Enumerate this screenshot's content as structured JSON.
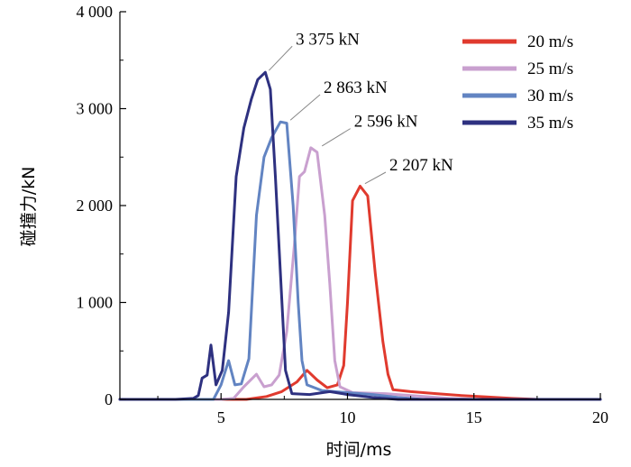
{
  "chart_data": {
    "type": "line",
    "title": "",
    "xlabel": "时间/ms",
    "ylabel": "碰撞力/kN",
    "xlim": [
      1,
      20
    ],
    "ylim": [
      0,
      4000
    ],
    "x_ticks": [
      5,
      10,
      15,
      20
    ],
    "x_tick_labels": [
      "5",
      "10",
      "15",
      "20"
    ],
    "y_ticks": [
      0,
      1000,
      2000,
      3000,
      4000
    ],
    "y_tick_labels": [
      "0",
      "1 000",
      "2 000",
      "3 000",
      "4 000"
    ],
    "grid": false,
    "legend_position": "top-right",
    "series": [
      {
        "name": "20 m/s",
        "color": "#e03a2e",
        "points": [
          [
            1,
            0
          ],
          [
            4,
            0
          ],
          [
            6,
            0
          ],
          [
            6.8,
            30
          ],
          [
            7.4,
            80
          ],
          [
            8.0,
            180
          ],
          [
            8.4,
            300
          ],
          [
            8.8,
            200
          ],
          [
            9.2,
            120
          ],
          [
            9.6,
            150
          ],
          [
            9.85,
            350
          ],
          [
            10.0,
            1000
          ],
          [
            10.2,
            2050
          ],
          [
            10.5,
            2200
          ],
          [
            10.8,
            2100
          ],
          [
            11.1,
            1300
          ],
          [
            11.4,
            600
          ],
          [
            11.6,
            260
          ],
          [
            11.8,
            100
          ],
          [
            12.5,
            80
          ],
          [
            13.5,
            60
          ],
          [
            14.5,
            40
          ],
          [
            15.5,
            25
          ],
          [
            16.5,
            10
          ],
          [
            17.5,
            0
          ],
          [
            20,
            0
          ]
        ]
      },
      {
        "name": "25 m/s",
        "color": "#c9a0cf",
        "points": [
          [
            1,
            0
          ],
          [
            5,
            0
          ],
          [
            5.5,
            10
          ],
          [
            5.9,
            130
          ],
          [
            6.4,
            260
          ],
          [
            6.7,
            130
          ],
          [
            7.0,
            150
          ],
          [
            7.3,
            250
          ],
          [
            7.6,
            700
          ],
          [
            7.9,
            1600
          ],
          [
            8.1,
            2300
          ],
          [
            8.3,
            2350
          ],
          [
            8.55,
            2596
          ],
          [
            8.8,
            2550
          ],
          [
            9.1,
            1900
          ],
          [
            9.3,
            1200
          ],
          [
            9.5,
            400
          ],
          [
            9.7,
            130
          ],
          [
            10.2,
            70
          ],
          [
            11.5,
            60
          ],
          [
            13,
            30
          ],
          [
            14,
            10
          ],
          [
            15,
            0
          ],
          [
            20,
            0
          ]
        ]
      },
      {
        "name": "30 m/s",
        "color": "#6284c2",
        "points": [
          [
            1,
            0
          ],
          [
            4.7,
            0
          ],
          [
            5.0,
            150
          ],
          [
            5.3,
            400
          ],
          [
            5.55,
            150
          ],
          [
            5.8,
            160
          ],
          [
            6.1,
            420
          ],
          [
            6.4,
            1900
          ],
          [
            6.7,
            2500
          ],
          [
            7.0,
            2700
          ],
          [
            7.35,
            2863
          ],
          [
            7.6,
            2850
          ],
          [
            7.85,
            2000
          ],
          [
            8.05,
            1000
          ],
          [
            8.2,
            400
          ],
          [
            8.4,
            150
          ],
          [
            9,
            90
          ],
          [
            10,
            70
          ],
          [
            11,
            50
          ],
          [
            12,
            20
          ],
          [
            13,
            0
          ],
          [
            20,
            0
          ]
        ]
      },
      {
        "name": "35 m/s",
        "color": "#2e3180",
        "points": [
          [
            1,
            0
          ],
          [
            3.2,
            0
          ],
          [
            3.9,
            10
          ],
          [
            4.1,
            40
          ],
          [
            4.25,
            220
          ],
          [
            4.45,
            250
          ],
          [
            4.6,
            560
          ],
          [
            4.8,
            150
          ],
          [
            5.05,
            300
          ],
          [
            5.3,
            900
          ],
          [
            5.6,
            2300
          ],
          [
            5.9,
            2800
          ],
          [
            6.2,
            3100
          ],
          [
            6.45,
            3300
          ],
          [
            6.75,
            3375
          ],
          [
            6.95,
            3200
          ],
          [
            7.15,
            2300
          ],
          [
            7.35,
            1300
          ],
          [
            7.55,
            300
          ],
          [
            7.8,
            60
          ],
          [
            8.5,
            50
          ],
          [
            9.3,
            80
          ],
          [
            10,
            50
          ],
          [
            11,
            20
          ],
          [
            12,
            0
          ],
          [
            20,
            0
          ]
        ]
      }
    ],
    "annotations": [
      {
        "text": "3 375 kN",
        "x": 6.75,
        "y": 3375,
        "label_x": 8.1,
        "label_y": 3700
      },
      {
        "text": "2 863 kN",
        "x": 7.6,
        "y": 2863,
        "label_x": 9.2,
        "label_y": 3200
      },
      {
        "text": "2 596 kN",
        "x": 8.85,
        "y": 2596,
        "label_x": 10.4,
        "label_y": 2850
      },
      {
        "text": "2 207 kN",
        "x": 10.55,
        "y": 2207,
        "label_x": 11.8,
        "label_y": 2400
      }
    ]
  }
}
